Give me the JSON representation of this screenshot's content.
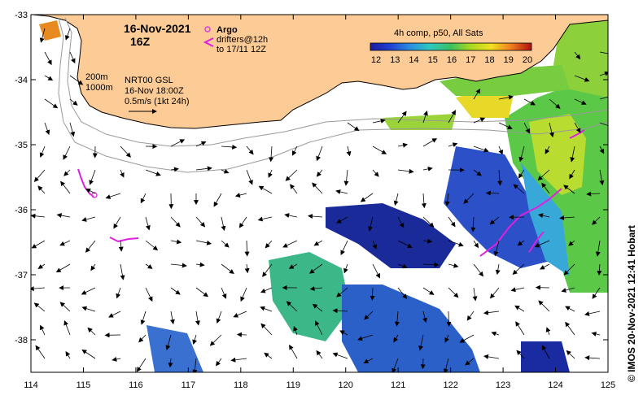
{
  "map": {
    "date": "16-Nov-2021",
    "hour": "16Z",
    "argo_label": "Argo",
    "drifters_line1": "drifters@12h",
    "drifters_line2": "to 17/11 12Z",
    "depth1": "200m",
    "depth2": "1000m",
    "product": "NRT00 GSL",
    "valid_time": "16-Nov 18:00Z",
    "scale_label": "0.5m/s (1kt 24h)",
    "colorbar_title": "4h comp, p50, All Sats",
    "colorbar_ticks": [
      "12",
      "13",
      "14",
      "15",
      "16",
      "17",
      "18",
      "19",
      "20"
    ],
    "credit": "© IMOS 20-Nov-2021 12:41 Hobart",
    "x_ticks": [
      "114",
      "115",
      "116",
      "117",
      "118",
      "119",
      "120",
      "121",
      "122",
      "123",
      "124",
      "125"
    ],
    "y_ticks": [
      "-33",
      "-34",
      "-35",
      "-36",
      "-37",
      "-38"
    ],
    "xlim": [
      114,
      125
    ],
    "ylim": [
      -38.5,
      -33
    ],
    "colors": {
      "land": "#FCCB96",
      "argo": "#E040E0",
      "drifter": "#E020E0",
      "arrow": "#000000",
      "contour": "#9a9a9a"
    }
  }
}
